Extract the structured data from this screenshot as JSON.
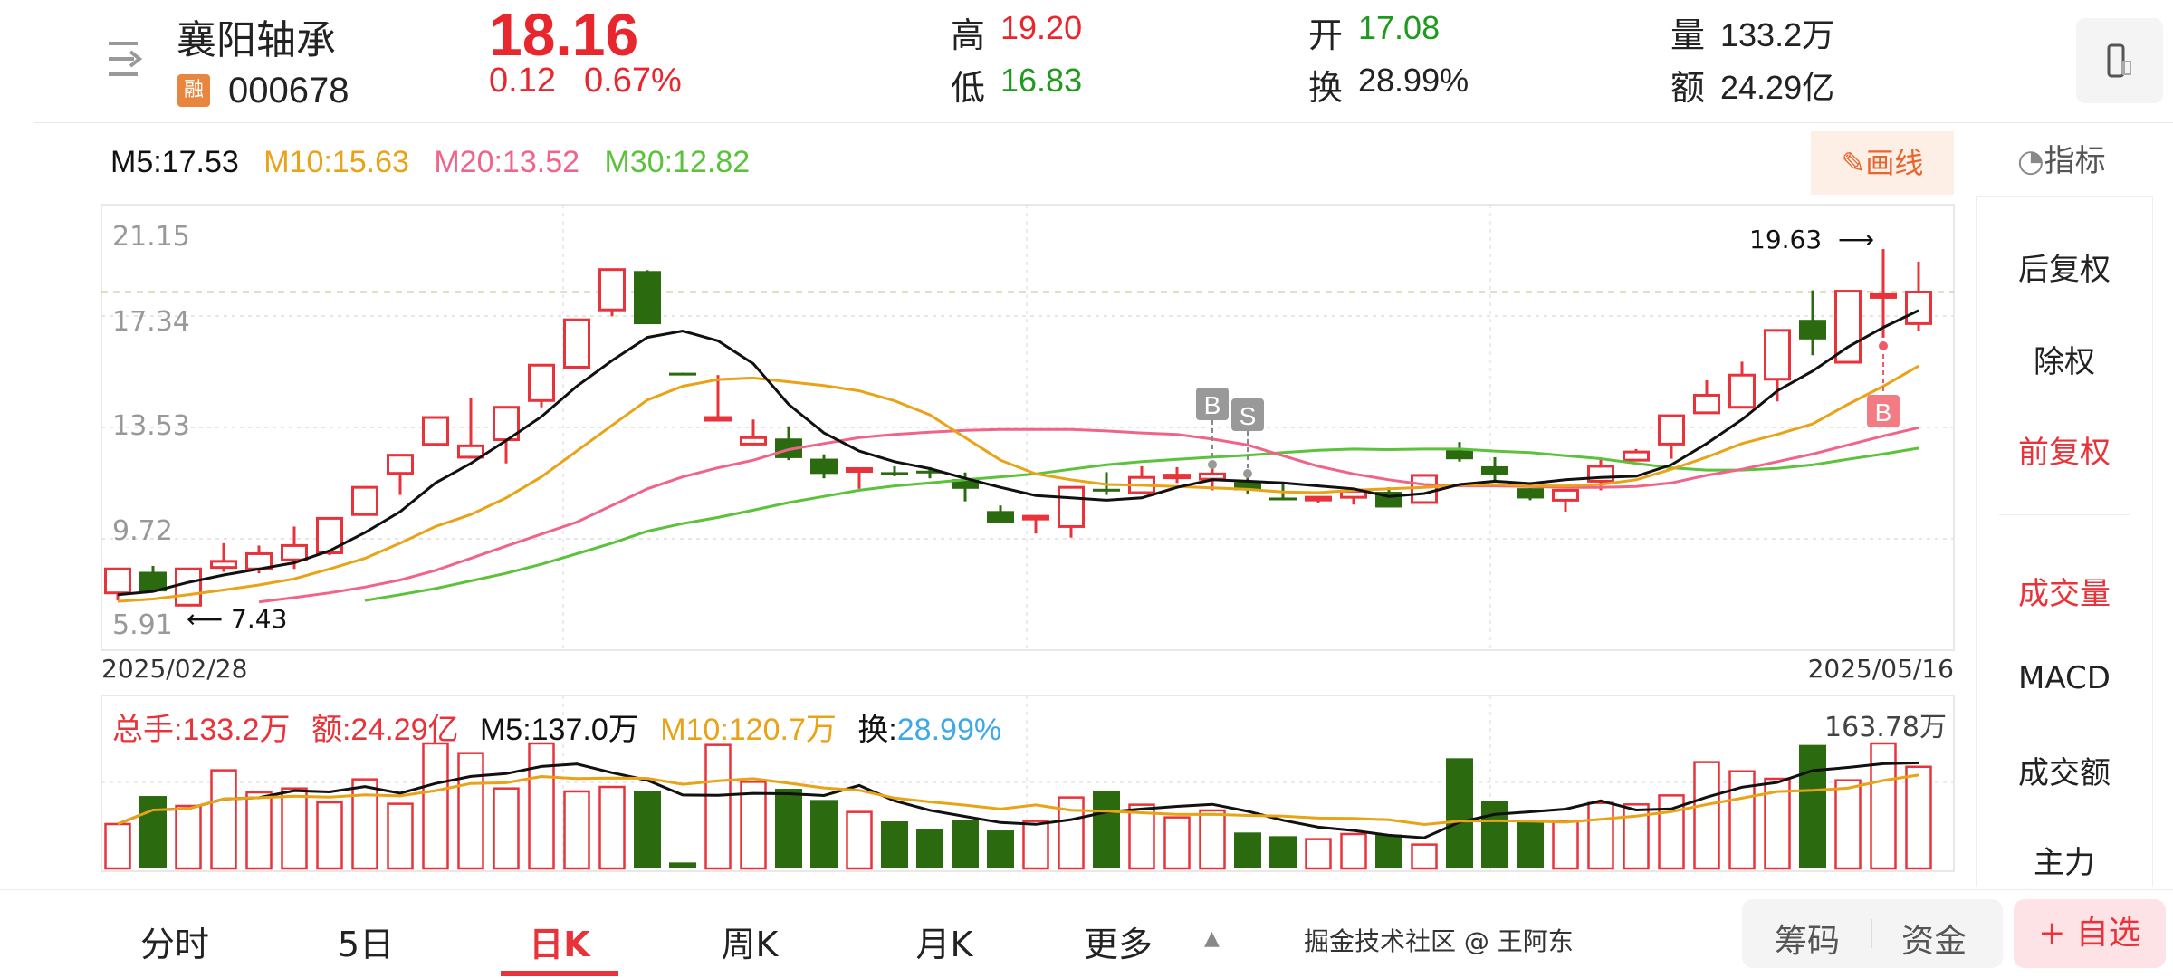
{
  "header": {
    "stock_name": "襄阳轴承",
    "margin_badge": "融",
    "stock_code": "000678",
    "price": "18.16",
    "change": "0.12",
    "change_pct": "0.67%",
    "high_label": "高",
    "high": "19.20",
    "low_label": "低",
    "low": "16.83",
    "open_label": "开",
    "open": "17.08",
    "turnover_label": "换",
    "turnover": "28.99%",
    "volume_label": "量",
    "volume": "133.2万",
    "amount_label": "额",
    "amount": "24.29亿",
    "menu_icon": "menu-arrow-icon",
    "screen_icon": "phone-rotate-icon"
  },
  "ma_legend": {
    "ma5": "M5:17.53",
    "ma10": "M10:15.63",
    "ma20": "M20:13.52",
    "ma30": "M30:12.82"
  },
  "toolbar": {
    "draw_label": "画线",
    "indicator_label": "指标"
  },
  "colors": {
    "up": "#e8333a",
    "down": "#2b6a0f",
    "ma5": "#111111",
    "ma10": "#e8a317",
    "ma20": "#f0648a",
    "ma30": "#5cc23b",
    "turnover": "#3fa9e6"
  },
  "chart_data": [
    {
      "type": "candlestick",
      "y_ticks": [
        "21.15",
        "17.34",
        "13.53",
        "9.72",
        "5.91"
      ],
      "ylim": [
        5.91,
        21.15
      ],
      "x_start": "2025/02/28",
      "x_end": "2025/05/16",
      "current_price_line": 18.16,
      "annotations": {
        "low": "7.43",
        "high": "19.63"
      },
      "markers": [
        {
          "index": 31,
          "label": "B"
        },
        {
          "index": 32,
          "label": "S"
        },
        {
          "index": 50,
          "label": "B"
        }
      ],
      "ohlc": [
        [
          7.87,
          8.69,
          7.61,
          8.69
        ],
        [
          8.59,
          8.79,
          7.92,
          7.92
        ],
        [
          7.45,
          8.69,
          7.43,
          8.69
        ],
        [
          8.74,
          9.57,
          8.59,
          8.95
        ],
        [
          8.69,
          9.49,
          8.54,
          9.21
        ],
        [
          9.0,
          10.14,
          8.69,
          9.49
        ],
        [
          9.24,
          10.42,
          9.16,
          10.42
        ],
        [
          10.55,
          11.48,
          10.55,
          11.48
        ],
        [
          11.96,
          12.58,
          11.22,
          12.58
        ],
        [
          12.95,
          13.87,
          12.9,
          13.87
        ],
        [
          12.51,
          14.53,
          12.46,
          12.9
        ],
        [
          13.11,
          14.22,
          12.3,
          14.22
        ],
        [
          14.45,
          15.66,
          14.22,
          15.66
        ],
        [
          15.59,
          17.21,
          15.55,
          17.21
        ],
        [
          17.55,
          18.93,
          17.33,
          18.93
        ],
        [
          18.88,
          18.91,
          17.06,
          17.06
        ],
        [
          15.4,
          15.4,
          15.35,
          15.35
        ],
        [
          13.85,
          15.32,
          13.85,
          13.87
        ],
        [
          12.96,
          13.8,
          12.96,
          13.18
        ],
        [
          13.15,
          13.57,
          12.41,
          12.48
        ],
        [
          12.46,
          12.61,
          11.79,
          11.94
        ],
        [
          12.1,
          12.12,
          11.43,
          12.12
        ],
        [
          12.0,
          12.2,
          11.86,
          11.97
        ],
        [
          12.05,
          12.17,
          11.79,
          12.02
        ],
        [
          11.76,
          11.99,
          11.0,
          11.43
        ],
        [
          10.67,
          10.86,
          10.27,
          10.27
        ],
        [
          10.43,
          10.52,
          9.9,
          10.49
        ],
        [
          10.14,
          11.48,
          9.76,
          11.48
        ],
        [
          11.43,
          12.0,
          11.22,
          11.41
        ],
        [
          11.3,
          12.2,
          11.3,
          11.82
        ],
        [
          11.85,
          12.17,
          11.63,
          11.9
        ],
        [
          11.76,
          12.25,
          11.38,
          11.94
        ],
        [
          11.66,
          11.99,
          11.27,
          11.38
        ],
        [
          11.13,
          11.58,
          11.1,
          11.1
        ],
        [
          11.12,
          11.14,
          10.96,
          11.14
        ],
        [
          11.14,
          11.35,
          10.89,
          11.35
        ],
        [
          11.33,
          11.48,
          10.79,
          10.79
        ],
        [
          10.96,
          11.89,
          10.96,
          11.89
        ],
        [
          12.75,
          13.03,
          12.36,
          12.44
        ],
        [
          12.2,
          12.51,
          11.69,
          11.92
        ],
        [
          11.45,
          11.45,
          11.04,
          11.1
        ],
        [
          11.04,
          11.38,
          10.65,
          11.38
        ],
        [
          11.69,
          12.46,
          11.38,
          12.2
        ],
        [
          12.41,
          12.79,
          12.41,
          12.69
        ],
        [
          12.96,
          13.93,
          12.46,
          13.93
        ],
        [
          14.03,
          15.14,
          14.03,
          14.63
        ],
        [
          14.22,
          15.78,
          14.22,
          15.32
        ],
        [
          15.18,
          16.85,
          14.42,
          16.85
        ],
        [
          17.21,
          18.22,
          16.0,
          16.54
        ],
        [
          15.76,
          18.19,
          15.76,
          18.19
        ],
        [
          18.06,
          19.63,
          16.6,
          18.07
        ],
        [
          17.08,
          19.2,
          16.83,
          18.16
        ]
      ],
      "ma5": [
        7.81,
        7.92,
        8.23,
        8.48,
        8.69,
        8.9,
        9.31,
        9.93,
        10.65,
        11.63,
        12.3,
        13.08,
        13.9,
        14.94,
        15.82,
        16.61,
        16.83,
        16.49,
        15.71,
        14.32,
        13.34,
        12.72,
        12.36,
        12.12,
        11.79,
        11.48,
        11.2,
        11.12,
        11.04,
        11.12,
        11.48,
        11.74,
        11.69,
        11.63,
        11.53,
        11.43,
        11.17,
        11.27,
        11.58,
        11.69,
        11.61,
        11.74,
        11.82,
        11.86,
        12.25,
        12.98,
        13.8,
        14.78,
        15.46,
        16.28,
        16.95,
        17.53
      ],
      "ma10": [
        7.58,
        7.66,
        7.81,
        7.97,
        8.14,
        8.35,
        8.69,
        9.05,
        9.57,
        10.14,
        10.55,
        11.12,
        11.84,
        12.72,
        13.6,
        14.47,
        14.94,
        15.17,
        15.22,
        15.09,
        14.96,
        14.78,
        14.44,
        13.96,
        13.18,
        12.41,
        11.94,
        11.74,
        11.58,
        11.55,
        11.51,
        11.46,
        11.41,
        11.32,
        11.3,
        11.38,
        11.43,
        11.48,
        11.55,
        11.58,
        11.53,
        11.53,
        11.58,
        11.74,
        12.1,
        12.51,
        12.98,
        13.29,
        13.65,
        14.32,
        14.94,
        15.63
      ],
      "ma20": [
        null,
        null,
        null,
        null,
        7.56,
        7.71,
        7.87,
        8.07,
        8.31,
        8.64,
        9.05,
        9.47,
        9.88,
        10.29,
        10.86,
        11.43,
        11.84,
        12.15,
        12.41,
        12.77,
        12.98,
        13.18,
        13.29,
        13.37,
        13.43,
        13.46,
        13.46,
        13.46,
        13.41,
        13.34,
        13.29,
        13.13,
        12.93,
        12.56,
        12.2,
        11.94,
        11.74,
        11.58,
        11.53,
        11.53,
        11.51,
        11.48,
        11.48,
        11.51,
        11.63,
        11.89,
        12.1,
        12.36,
        12.62,
        12.93,
        13.24,
        13.52
      ],
      "ma30": [
        null,
        null,
        null,
        null,
        null,
        null,
        null,
        7.61,
        7.81,
        8.02,
        8.28,
        8.54,
        8.85,
        9.21,
        9.57,
        9.98,
        10.24,
        10.45,
        10.7,
        10.96,
        11.17,
        11.38,
        11.53,
        11.63,
        11.74,
        11.84,
        11.94,
        12.1,
        12.25,
        12.36,
        12.44,
        12.51,
        12.58,
        12.67,
        12.75,
        12.79,
        12.77,
        12.79,
        12.79,
        12.72,
        12.67,
        12.56,
        12.46,
        12.3,
        12.15,
        12.07,
        12.07,
        12.13,
        12.25,
        12.44,
        12.62,
        12.82
      ]
    },
    {
      "type": "bar",
      "unit": "万",
      "max_label": "163.78万",
      "ylim": [
        0,
        163.78
      ],
      "legend": {
        "total_label": "总手:133.2万",
        "amount_label": "额:24.29亿",
        "m5": "M5:137.0万",
        "m10": "M10:120.7万",
        "turnover_prefix": "换:",
        "turnover_value": "28.99%"
      },
      "values": [
        58.2,
        94.9,
        81.9,
        128.6,
        99.7,
        104.8,
        86.6,
        116.7,
        84.7,
        163.8,
        151.1,
        104.8,
        163.8,
        100.9,
        106.8,
        101.7,
        7.9,
        161.8,
        113.5,
        104.4,
        89.8,
        74.0,
        61.7,
        51.0,
        64.1,
        49.8,
        62.1,
        93.0,
        100.9,
        83.5,
        66.9,
        76.0,
        47.1,
        42.3,
        38.4,
        45.1,
        44.3,
        31.3,
        144.4,
        89.0,
        62.1,
        62.1,
        85.8,
        83.9,
        95.7,
        139.3,
        127.3,
        117.5,
        161.8,
        115.5,
        163.8,
        133.2
      ]
    }
  ],
  "side_panel": {
    "items": [
      "后复权",
      "除权",
      "前复权",
      "成交量",
      "MACD",
      "成交额",
      "主力"
    ],
    "active": [
      "前复权",
      "成交量"
    ]
  },
  "bottom_tabs": {
    "items": [
      "分时",
      "5日",
      "日K",
      "周K",
      "月K",
      "更多"
    ],
    "active": "日K"
  },
  "bottom_buttons": {
    "chips": "筹码",
    "funds": "资金",
    "watchlist": "+ 自选"
  },
  "watermark": "掘金技术社区 @ 王阿东"
}
